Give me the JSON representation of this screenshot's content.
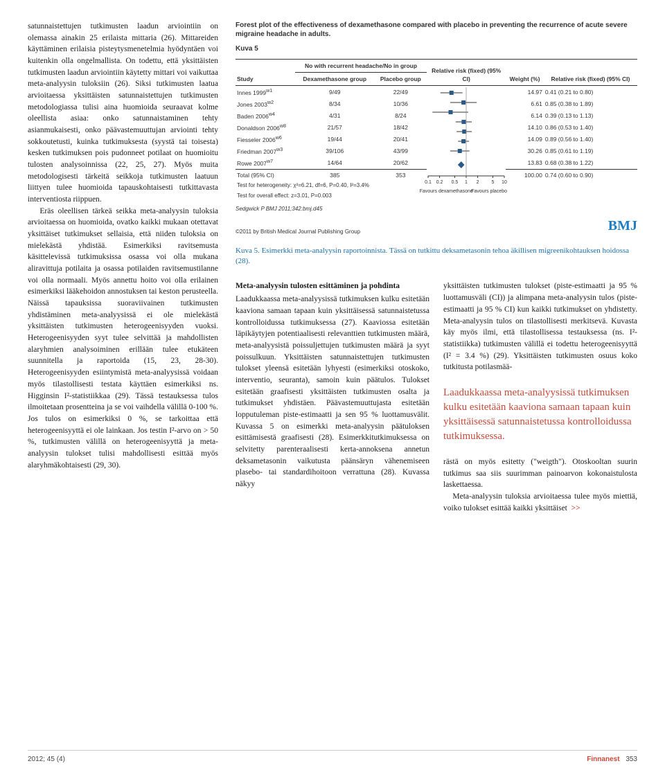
{
  "leftColumn": {
    "text": "satunnaistettujen tutkimusten laadun arviointiin on olemassa ainakin 25 erilaista mittaria (26). Mittareiden käyttäminen erilaisia pisteytysmenetelmia hyödyntäen voi kuitenkin olla ongelmallista. On todettu, että yksittäisten tutkimusten laadun arviointiin käytetty mittari voi vaikuttaa meta-analyysin tuloksiin (26). Siksi tutkimusten laatua arvioitaessa yksittäisten satunnaistettujen tutkimusten metodologiassa tulisi aina huomioida seuraavat kolme oleellista asiaa: onko satunnaistaminen tehty asianmukaisesti, onko päävastemuuttujan arviointi tehty sokkoutetusti, kuinka tutkimuksesta (syystä tai toisesta) kesken tutkimuksen pois pudonneet potilaat on huomioitu tulosten analysoinnissa (22, 25, 27). Myös muita metodologisesti tärkeitä seikkoja tutkimusten laatuun liittyen tulee huomioida tapauskohtaisesti tutkittavasta interventiosta riippuen.\n\nEräs oleellisen tärkeä seikka meta-analyysin tuloksia arvioitaessa on huomioida, ovatko kaikki mukaan otettavat yksittäiset tutkimukset sellaisia, että niiden tuloksia on mielekästä yhdistää. Esimerkiksi ravitsemusta käsittelevissä tutkimuksissa osassa voi olla mukana aliravittuja potilaita ja osassa potilaiden ravitsemustilanne voi olla normaali. Myös annettu hoito voi olla erilainen esimerkiksi lääkehoidon annostuksen tai keston perusteella. Näissä tapauksissa suoraviivainen tutkimusten yhdistäminen meta-analyysissä ei ole mielekästä yksittäisten tutkimusten heterogeenisyyden vuoksi. Heterogeenisyyden syyt tulee selvittää ja mahdollisten alaryhmien analysoiminen erillään tulee etukäteen suunnitella ja raportoida (15, 23, 28-30). Heterogeenisyyden esiintymistä meta-analyysissä voidaan myös tilastollisesti testata käyttäen esimerkiksi ns. Higginsin I²-statistiikkaa (29). Tässä testauksessa tulos ilmoitetaan prosentteina ja se voi vaihdella välillä 0-100 %. Jos tulos on esimerkiksi 0 %, se tarkoittaa että heterogeenisyyttä ei ole lainkaan. Jos testin I²-arvo on > 50 %, tutkimusten välillä on heterogeenisyyttä ja meta-analyysin tulokset tulisi mahdollisesti esittää myös alaryhmäkohtaisesti (29, 30)."
  },
  "figure": {
    "titleLine": "Forest plot of the effectiveness of dexamethasone compared with placebo in preventing the recurrence of acute severe migraine headache in adults.",
    "label": "Kuva 5",
    "headers": {
      "study": "Study",
      "dex": "No with recurrent headache/No in group",
      "dexSub": "Dexamethasone group",
      "plcSub": "Placebo group",
      "rr": "Relative risk (fixed) (95% CI)",
      "weight": "Weight (%)",
      "rrText": "Relative risk (fixed) (95% CI)"
    },
    "rows": [
      {
        "study": "Innes 1999^w1",
        "dex": "9/49",
        "plc": "22/49",
        "weight": "14.97",
        "rr": "0.41 (0.21 to 0.80)",
        "est": 0.41,
        "lo": 0.21,
        "hi": 0.8
      },
      {
        "study": "Jones 2003^w2",
        "dex": "8/34",
        "plc": "10/36",
        "weight": "6.61",
        "rr": "0.85 (0.38 to 1.89)",
        "est": 0.85,
        "lo": 0.38,
        "hi": 1.89
      },
      {
        "study": "Baden 2006^w4",
        "dex": "4/31",
        "plc": "8/24",
        "weight": "6.14",
        "rr": "0.39 (0.13 to 1.13)",
        "est": 0.39,
        "lo": 0.13,
        "hi": 1.13
      },
      {
        "study": "Donaldson 2006^w8",
        "dex": "21/57",
        "plc": "18/42",
        "weight": "14.10",
        "rr": "0.86 (0.53 to 1.40)",
        "est": 0.86,
        "lo": 0.53,
        "hi": 1.4
      },
      {
        "study": "Fiesseler 2006^w6",
        "dex": "19/44",
        "plc": "20/41",
        "weight": "14.09",
        "rr": "0.89 (0.56 to 1.40)",
        "est": 0.89,
        "lo": 0.56,
        "hi": 1.4
      },
      {
        "study": "Friedman 2007^w3",
        "dex": "39/106",
        "plc": "43/99",
        "weight": "30.26",
        "rr": "0.85 (0.61 to 1.19)",
        "est": 0.85,
        "lo": 0.61,
        "hi": 1.19
      },
      {
        "study": "Rowe 2007^w7",
        "dex": "14/64",
        "plc": "20/62",
        "weight": "13.83",
        "rr": "0.68 (0.38 to 1.22)",
        "est": 0.68,
        "lo": 0.38,
        "hi": 1.22
      }
    ],
    "total": {
      "label": "Total (95% CI)",
      "dex": "385",
      "plc": "353",
      "weight": "100.00",
      "rr": "0.74 (0.60 to 0.90)",
      "est": 0.74,
      "lo": 0.6,
      "hi": 0.9
    },
    "hetTest": "Test for heterogeneity: χ²=6.21, df=6, P=0.40, I²=3.4%",
    "effTest": "Test for overall effect: z=3.01, P=0.003",
    "axis": {
      "ticks": [
        0.1,
        0.2,
        0.5,
        1,
        2,
        5,
        10
      ],
      "favLeft": "Favours dexamethasone",
      "favRight": "Favours placebo"
    },
    "source": "Sedgwick P BMJ 2011;342:bmj.d45",
    "copyright": "©2011 by British Medical Journal Publishing Group",
    "logo": "BMJ",
    "caption": "Kuva 5. Esimerkki meta-analyysin raportoinnista. Tässä on tutkittu deksametasonin tehoa äkillisen migreenikohtauksen hoidossa (28)."
  },
  "middleColumn": {
    "heading": "Meta-analyysin tulosten esittäminen ja pohdinta",
    "text": "Laadukkaassa meta-analyysissä tutkimuksen kulku esitetään kaaviona samaan tapaan kuin yksittäisessä satunnaistetussa kontrolloidussa tutkimuksessa (27). Kaaviossa esitetään läpikäytyjen potentiaalisesti relevanttien tutkimusten määrä, meta-analyysistä poissuljettujen tutkimusten määrä ja syyt poissulkuun. Yksittäisten satunnaistettujen tutkimusten tulokset yleensä esitetään lyhyesti (esimerkiksi otoskoko, interventio, seuranta), samoin kuin päätulos. Tulokset esitetään graafisesti yksittäisten tutkimusten osalta ja tutkimukset yhdistäen. Päävastemuuttujasta esitetään lopputuleman piste-estimaatti ja sen 95 % luottamusvälit. Kuvassa 5 on esimerkki meta-analyysin päätuloksen esittämisestä graafisesti (28). Esimerkkitutkimuksessa on selvitetty parenteraalisesti kerta-annoksena annetun deksametasonin vaikutusta päänsäryn vähenemiseen plasebo- tai standardihoitoon verrattuna (28). Kuvassa näkyy"
  },
  "rightColumn": {
    "text": "yksittäisten tutkimusten tulokset (piste-estimaatti ja 95 % luottamusväli (CI)) ja alimpana meta-analyysin tulos (piste-estimaatti ja 95 % CI) kun kaikki tutkimukset on yhdistetty. Meta-analyysin tulos on tilastollisesti merkitsevä. Kuvasta käy myös ilmi, että tilastollisessa testauksessa (ns. I²-statistiikka) tutkimusten välillä ei todettu heterogeenisyyttä (I² = 3.4 %) (29). Yksittäisten tutkimusten osuus koko tutkitusta potilasmää-",
    "pullquote": "Laadukkaassa meta-analyysissä tutkimuksen kulku esitetään kaaviona samaan tapaan kuin yksittäisessä satunnaistetussa kontrolloidussa tutkimuksessa.",
    "tail": "rästä on myös esitetty (\"weigth\"). Otoskooltan suurin tutkimus saa siis suurimman painoarvon kokonaistulosta laskettaessa.\nMeta-analyysin tuloksia arvioitaessa tulee myös miettiä, voiko tulokset esittää kaikki yksittäiset",
    "goto": ">>"
  },
  "footer": {
    "left": "2012; 45 (4)",
    "journal": "Finnanest",
    "page": "353"
  },
  "style": {
    "accent": "#c64a3a",
    "captionColor": "#1d6fa8",
    "plotXMin": 0.1,
    "plotXMax": 10
  }
}
